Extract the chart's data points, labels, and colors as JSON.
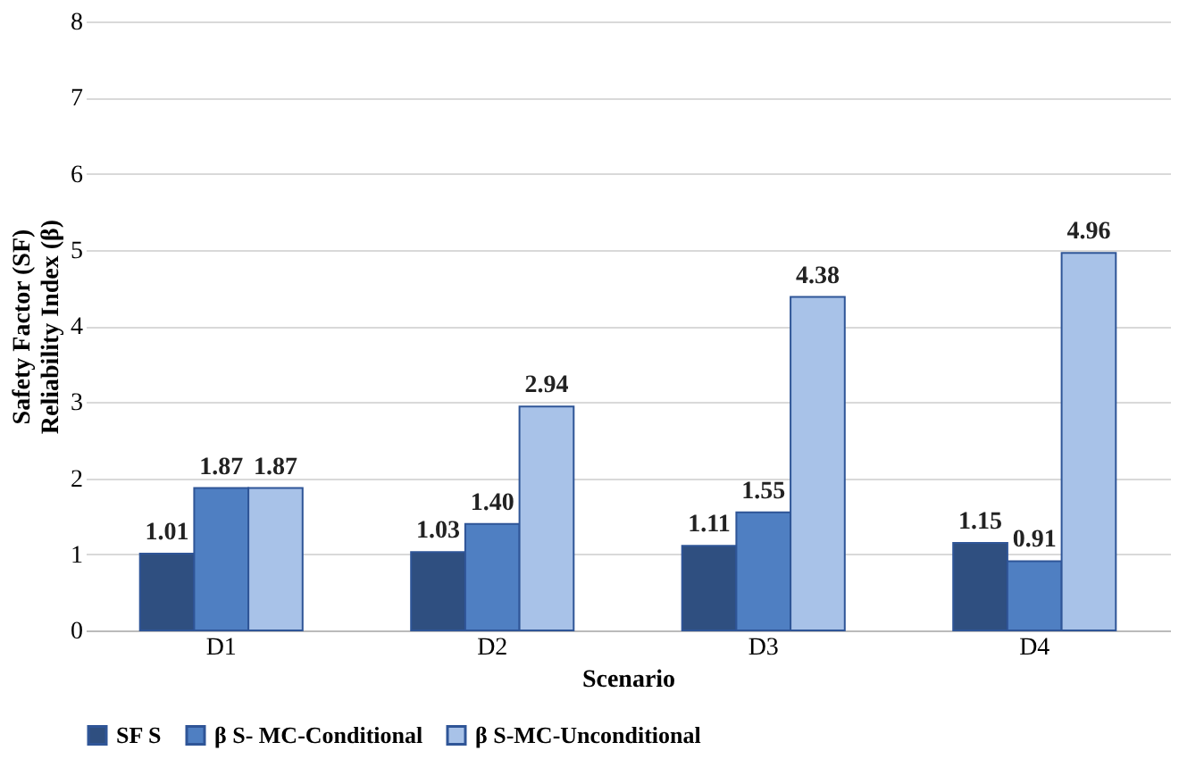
{
  "chart_data": {
    "type": "bar",
    "xlabel": "Scenario",
    "ylabel": "Safety Factor (SF)\nReliability Index (β)",
    "categories": [
      "D1",
      "D2",
      "D3",
      "D4"
    ],
    "series": [
      {
        "name": "SF S",
        "color": "#2f4f80",
        "values": [
          1.01,
          1.03,
          1.11,
          1.15
        ],
        "value_labels": [
          "1.01",
          "1.03",
          "1.11",
          "1.15"
        ]
      },
      {
        "name": "β S- MC-Conditional",
        "color": "#4f7fc2",
        "values": [
          1.87,
          1.4,
          1.55,
          0.91
        ],
        "value_labels": [
          "1.87",
          "1.40",
          "1.55",
          "0.91"
        ]
      },
      {
        "name": "β S-MC-Unconditional",
        "color": "#a8c2e8",
        "values": [
          1.87,
          2.94,
          4.38,
          4.96
        ],
        "value_labels": [
          "1.87",
          "2.94",
          "4.38",
          "4.96"
        ]
      }
    ],
    "ylim": [
      0,
      8
    ],
    "yticks": [
      0,
      1,
      2,
      3,
      4,
      5,
      6,
      7,
      8
    ],
    "grid": "y",
    "legend": "bottom"
  }
}
